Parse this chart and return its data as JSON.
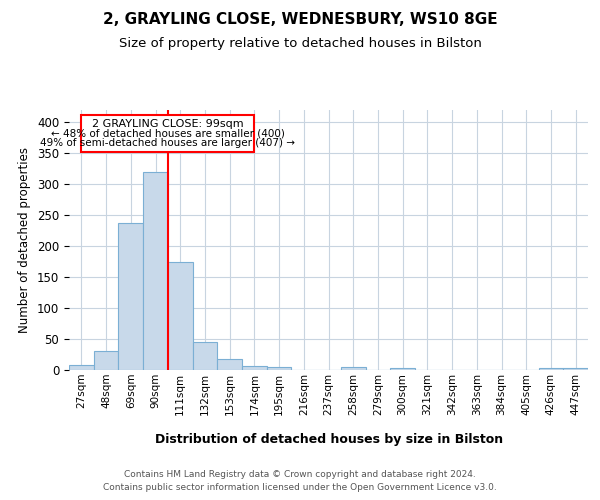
{
  "title1": "2, GRAYLING CLOSE, WEDNESBURY, WS10 8GE",
  "title2": "Size of property relative to detached houses in Bilston",
  "xlabel": "Distribution of detached houses by size in Bilston",
  "ylabel": "Number of detached properties",
  "categories": [
    "27sqm",
    "48sqm",
    "69sqm",
    "90sqm",
    "111sqm",
    "132sqm",
    "153sqm",
    "174sqm",
    "195sqm",
    "216sqm",
    "237sqm",
    "258sqm",
    "279sqm",
    "300sqm",
    "321sqm",
    "342sqm",
    "363sqm",
    "384sqm",
    "405sqm",
    "426sqm",
    "447sqm"
  ],
  "values": [
    8,
    31,
    237,
    320,
    174,
    46,
    17,
    6,
    5,
    0,
    0,
    5,
    0,
    3,
    0,
    0,
    0,
    0,
    0,
    3,
    3
  ],
  "bar_color": "#c8d9ea",
  "bar_edge_color": "#7bafd4",
  "red_line_x": 3.5,
  "annotation_title": "2 GRAYLING CLOSE: 99sqm",
  "annotation_line1": "← 48% of detached houses are smaller (400)",
  "annotation_line2": "49% of semi-detached houses are larger (407) →",
  "footer1": "Contains HM Land Registry data © Crown copyright and database right 2024.",
  "footer2": "Contains public sector information licensed under the Open Government Licence v3.0.",
  "ylim": [
    0,
    420
  ],
  "yticks": [
    0,
    50,
    100,
    150,
    200,
    250,
    300,
    350,
    400
  ],
  "bg_color": "#ffffff",
  "grid_color": "#c8d4e0"
}
